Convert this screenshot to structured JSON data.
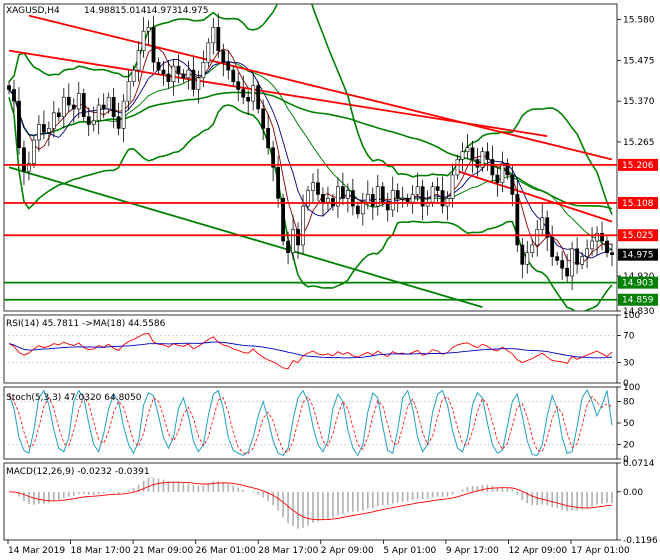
{
  "chart_data": {
    "type": "candlestick",
    "instrument": {
      "symbol": "XAGUSD,H4",
      "ohlc": [
        "14.988",
        "15.014",
        "14.973",
        "14.975"
      ]
    },
    "main_panel": {
      "ylim": [
        14.83,
        15.62
      ],
      "ticks": [
        {
          "label": "15.580",
          "y": 15.58
        },
        {
          "label": "15.475",
          "y": 15.475
        },
        {
          "label": "15.370",
          "y": 15.37
        },
        {
          "label": "15.265",
          "y": 15.265
        },
        {
          "label": "15.025",
          "y": 15.025
        },
        {
          "label": "14.920",
          "y": 14.92
        },
        {
          "label": "14.830",
          "y": 14.83
        }
      ],
      "levels": [
        {
          "label": "15.206",
          "value": 15.206,
          "color": "#ff0000"
        },
        {
          "label": "15.108",
          "value": 15.108,
          "color": "#ff0000"
        },
        {
          "label": "15.025",
          "value": 15.025,
          "color": "#ff0000"
        },
        {
          "label": "14.975",
          "value": 14.975,
          "color": "#000000"
        },
        {
          "label": "14.903",
          "value": 14.903,
          "color": "#008000"
        },
        {
          "label": "14.859",
          "value": 14.859,
          "color": "#008000"
        }
      ],
      "close": [
        15.4,
        15.37,
        15.25,
        15.19,
        15.21,
        15.27,
        15.31,
        15.29,
        15.3,
        15.34,
        15.33,
        15.38,
        15.36,
        15.35,
        15.39,
        15.33,
        15.31,
        15.32,
        15.36,
        15.35,
        15.38,
        15.33,
        15.3,
        15.37,
        15.42,
        15.45,
        15.5,
        15.55,
        15.56,
        15.47,
        15.45,
        15.44,
        15.42,
        15.46,
        15.44,
        15.43,
        15.45,
        15.4,
        15.43,
        15.47,
        15.52,
        15.56,
        15.5,
        15.47,
        15.45,
        15.42,
        15.4,
        15.38,
        15.37,
        15.41,
        15.35,
        15.3,
        15.25,
        15.2,
        15.12,
        15.01,
        14.98,
        15.04,
        15.0,
        15.1,
        15.14,
        15.16,
        15.13,
        15.11,
        15.12,
        15.1,
        15.15,
        15.12,
        15.14,
        15.1,
        15.08,
        15.11,
        15.13,
        15.1,
        15.15,
        15.11,
        15.09,
        15.14,
        15.12,
        15.12,
        15.11,
        15.13,
        15.15,
        15.1,
        15.11,
        15.15,
        15.14,
        15.1,
        15.12,
        15.18,
        15.22,
        15.24,
        15.25,
        15.22,
        15.2,
        15.24,
        15.22,
        15.18,
        15.16,
        15.21,
        15.18,
        15.13,
        15.0,
        14.95,
        14.98,
        15.0,
        15.04,
        15.07,
        15.02,
        14.97,
        14.96,
        14.94,
        14.92,
        14.99,
        14.95,
        14.97,
        14.99,
        15.01,
        15.03,
        15.01,
        14.98,
        14.975
      ],
      "indicator_lines": {
        "resistance_1": {
          "color": "#ff0000",
          "from": [
            4,
            15.59
          ],
          "to": [
            121,
            15.22
          ]
        },
        "resistance_2": {
          "color": "#ff0000",
          "from": [
            0,
            15.5
          ],
          "to": [
            108,
            15.28
          ]
        },
        "resistance_3": {
          "color": "#ff0000",
          "from": [
            90,
            15.19
          ],
          "to": [
            121,
            15.06
          ]
        },
        "support_1": {
          "color": "#008000",
          "from": [
            0,
            15.2
          ],
          "to": [
            95,
            14.84
          ]
        }
      }
    },
    "rsi": {
      "label": "RSI(14) 45.7811 ->MA(18) 44.5586",
      "ylim": [
        0,
        100
      ],
      "ticks": [
        {
          "label": "100",
          "y": 100
        },
        {
          "label": "70",
          "y": 70
        },
        {
          "label": "30",
          "y": 30
        },
        {
          "label": "0",
          "y": 0
        }
      ],
      "values": [
        58,
        54,
        45,
        41,
        44,
        50,
        55,
        52,
        54,
        58,
        56,
        60,
        57,
        55,
        59,
        52,
        49,
        50,
        55,
        53,
        57,
        51,
        48,
        56,
        61,
        64,
        68,
        72,
        73,
        60,
        57,
        56,
        53,
        58,
        55,
        54,
        57,
        50,
        54,
        59,
        64,
        68,
        60,
        56,
        54,
        50,
        48,
        45,
        44,
        50,
        43,
        38,
        34,
        31,
        27,
        22,
        21,
        33,
        30,
        40,
        44,
        47,
        43,
        41,
        43,
        40,
        46,
        42,
        45,
        40,
        38,
        42,
        45,
        41,
        47,
        42,
        39,
        46,
        43,
        44,
        42,
        45,
        48,
        41,
        43,
        49,
        47,
        42,
        45,
        52,
        56,
        58,
        59,
        55,
        52,
        57,
        54,
        49,
        47,
        53,
        48,
        43,
        34,
        30,
        33,
        36,
        40,
        44,
        38,
        33,
        32,
        31,
        29,
        39,
        35,
        38,
        41,
        44,
        47,
        43,
        39,
        45.78
      ]
    },
    "stoch": {
      "label": "Stoch(5,3,3) 47.0320 64.8050",
      "ylim": [
        0,
        100
      ],
      "ticks": [
        {
          "label": "100",
          "y": 100
        },
        {
          "label": "80",
          "y": 80
        },
        {
          "label": "50",
          "y": 50
        },
        {
          "label": "20",
          "y": 20
        },
        {
          "label": "0",
          "y": 0
        }
      ],
      "cycles_k": [
        90,
        70,
        30,
        12,
        8,
        40,
        85,
        95,
        75,
        40,
        15,
        10,
        30,
        80,
        95,
        85,
        50,
        20,
        10,
        35,
        70,
        90,
        80,
        45,
        20,
        8,
        25,
        75,
        92,
        88,
        60,
        30,
        15,
        30,
        70,
        85,
        60,
        25,
        10,
        20,
        60,
        90,
        95,
        70,
        30,
        12,
        8,
        5,
        10,
        30,
        60,
        80,
        55,
        25,
        8,
        5,
        15,
        55,
        85,
        95,
        80,
        45,
        20,
        10,
        25,
        70,
        90,
        80,
        40,
        15,
        5,
        20,
        65,
        92,
        85,
        45,
        12,
        8,
        40,
        85,
        95,
        70,
        30,
        10,
        20,
        65,
        90,
        95,
        75,
        40,
        15,
        10,
        30,
        75,
        92,
        85,
        50,
        20,
        8,
        12,
        45,
        80,
        90,
        60,
        25,
        6,
        5,
        20,
        60,
        88,
        70,
        30,
        8,
        10,
        45,
        85,
        96,
        80,
        60,
        75,
        95,
        47
      ]
    },
    "macd": {
      "label": "MACD(12,26,9) -0.0232 -0.0391",
      "ylim": [
        -0.1196,
        0.0714
      ],
      "ticks": [
        {
          "label": "0.0714",
          "y": 0.0714
        },
        {
          "label": "0.00",
          "y": 0
        },
        {
          "label": "-0.1196",
          "y": -0.1196
        }
      ]
    },
    "x_labels": [
      "14 Mar 2019",
      "18 Mar 17:00",
      "21 Mar 09:00",
      "26 Mar 01:00",
      "28 Mar 17:00",
      "2 Apr 09:00",
      "5 Apr 01:00",
      "9 Apr 17:00",
      "12 Apr 09:00",
      "17 Apr 01:00"
    ]
  }
}
